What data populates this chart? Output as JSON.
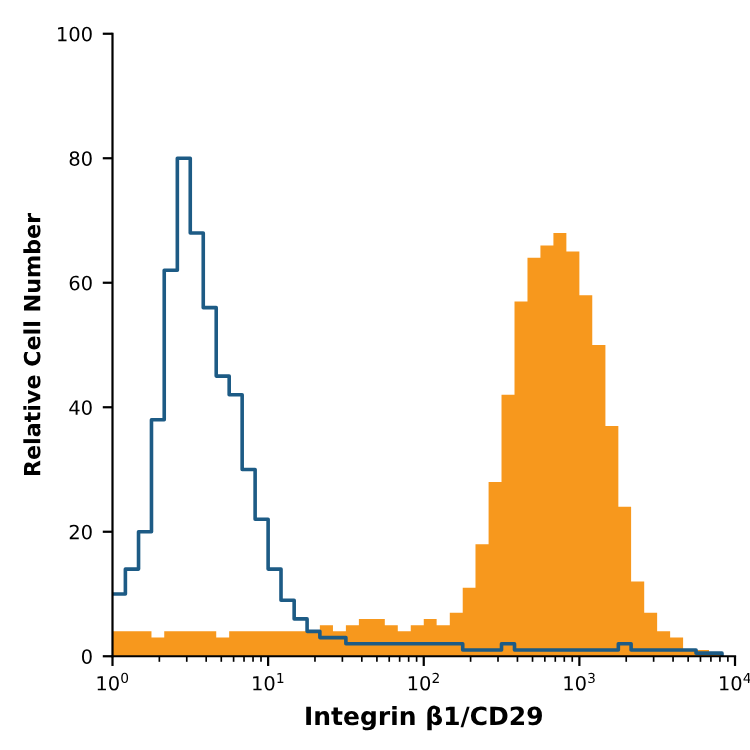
{
  "chart_data": {
    "type": "histogram",
    "xlabel": "Integrin β1/CD29",
    "ylabel": "Relative Cell Number",
    "log": "x",
    "grid": false,
    "bins": [
      1,
      1.21,
      1.47,
      1.78,
      2.15,
      2.61,
      3.16,
      3.83,
      4.64,
      5.62,
      6.81,
      8.25,
      10,
      12.1,
      14.7,
      17.8,
      21.5,
      26.1,
      31.6,
      38.3,
      46.4,
      56.2,
      68.1,
      82.5,
      100,
      121,
      147,
      178,
      215,
      261,
      316,
      383,
      464,
      562,
      681,
      825,
      1000,
      1210,
      1470,
      1780,
      2150,
      2610,
      3160,
      3830,
      4640,
      5620,
      6810,
      8250,
      10000
    ],
    "series": [
      {
        "color": "#f7981d",
        "values": [
          4,
          4,
          4,
          3,
          4,
          4,
          4,
          4,
          3,
          4,
          4,
          4,
          4,
          4,
          4,
          4,
          5,
          4,
          5,
          6,
          6,
          5,
          4,
          5,
          6,
          5,
          7,
          11,
          18,
          28,
          42,
          57,
          64,
          66,
          68,
          65,
          58,
          50,
          37,
          24,
          12,
          7,
          4,
          3,
          1,
          1,
          0.5,
          0
        ]
      },
      {
        "type": "step",
        "color": "#1d5b85",
        "x": [
          1,
          1.21,
          1.47,
          1.78,
          2.15,
          2.61,
          3.16,
          3.83,
          4.64,
          5.62,
          6.81,
          8.25,
          10,
          12.1,
          14.7,
          17.8,
          21.5,
          26.1,
          31.6,
          38.3,
          46.4,
          56.2,
          68.1,
          82.5,
          100,
          121,
          147,
          178,
          215,
          261,
          316,
          383,
          464,
          562,
          681,
          825,
          1000,
          1210,
          1470,
          1780,
          2150,
          2610,
          3160,
          3830,
          4640,
          5620,
          6810,
          8250
        ],
        "values": [
          10,
          14,
          20,
          38,
          62,
          80,
          68,
          56,
          45,
          42,
          30,
          22,
          14,
          9,
          6,
          4,
          3,
          3,
          2,
          2,
          2,
          2,
          2,
          2,
          2,
          2,
          2,
          1,
          1,
          1,
          2,
          1,
          1,
          1,
          1,
          1,
          1,
          1,
          1,
          2,
          1,
          1,
          1,
          1,
          1,
          0.5,
          0.5,
          0
        ]
      }
    ],
    "xlim": [
      1,
      10000
    ],
    "xticks": [
      {
        "value": 1,
        "label": "10$^{0}$"
      },
      {
        "value": 10,
        "label": "10$^{1}$"
      },
      {
        "value": 100,
        "label": "10$^{2}$"
      },
      {
        "value": 1000,
        "label": "10$^{3}$"
      },
      {
        "value": 10000,
        "label": "10$^{4}$"
      }
    ],
    "ylim": [
      0,
      100
    ],
    "yticks": [
      0,
      20,
      40,
      60,
      80,
      100
    ]
  }
}
